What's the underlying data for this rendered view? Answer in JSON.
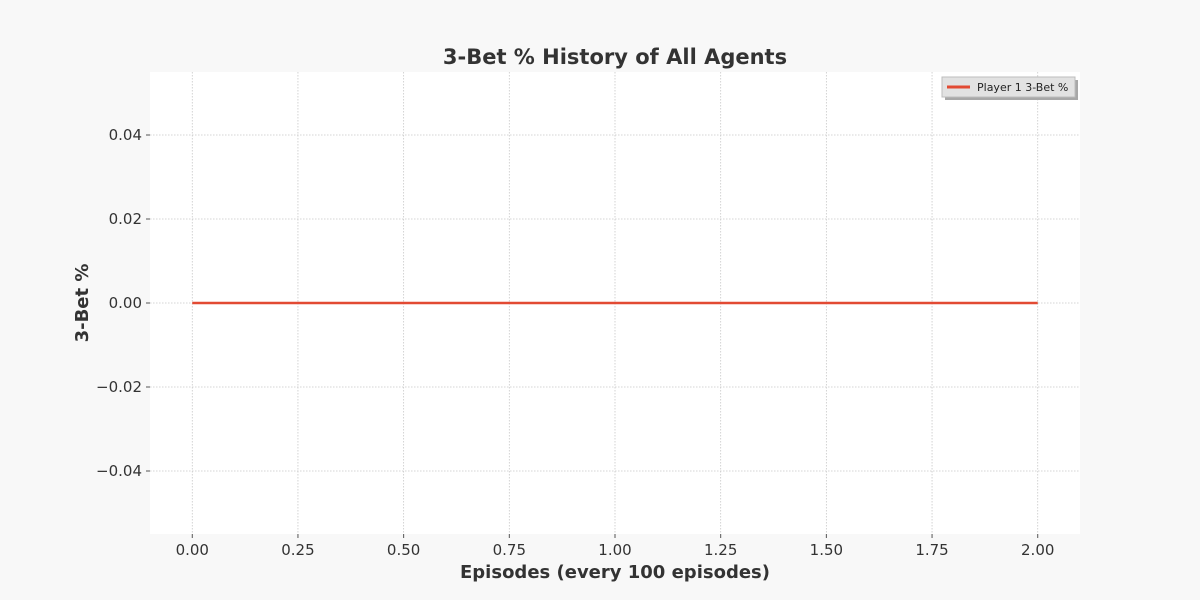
{
  "chart_data": {
    "type": "line",
    "title": "3-Bet % History of All Agents",
    "xlabel": "Episodes (every 100 episodes)",
    "ylabel": "3-Bet %",
    "xlim": [
      -0.1,
      2.1
    ],
    "ylim": [
      -0.055,
      0.055
    ],
    "x_ticks": [
      0.0,
      0.25,
      0.5,
      0.75,
      1.0,
      1.25,
      1.5,
      1.75,
      2.0
    ],
    "x_tick_labels": [
      "0.00",
      "0.25",
      "0.50",
      "0.75",
      "1.00",
      "1.25",
      "1.50",
      "1.75",
      "2.00"
    ],
    "y_ticks": [
      0.04,
      0.02,
      0.0,
      -0.02,
      -0.04
    ],
    "y_tick_labels": [
      "0.04",
      "0.02",
      "0.00",
      "−0.02",
      "−0.04"
    ],
    "grid": true,
    "legend_position": "top-right",
    "series": [
      {
        "name": "Player 1 3-Bet %",
        "color": "#e24a33",
        "x": [
          0,
          1,
          2
        ],
        "y": [
          0.0,
          0.0,
          0.0
        ]
      }
    ]
  },
  "colors": {
    "background": "#f8f8f8",
    "plot_background": "#ffffff",
    "grid": "#c8c8c8",
    "text": "#333333"
  }
}
